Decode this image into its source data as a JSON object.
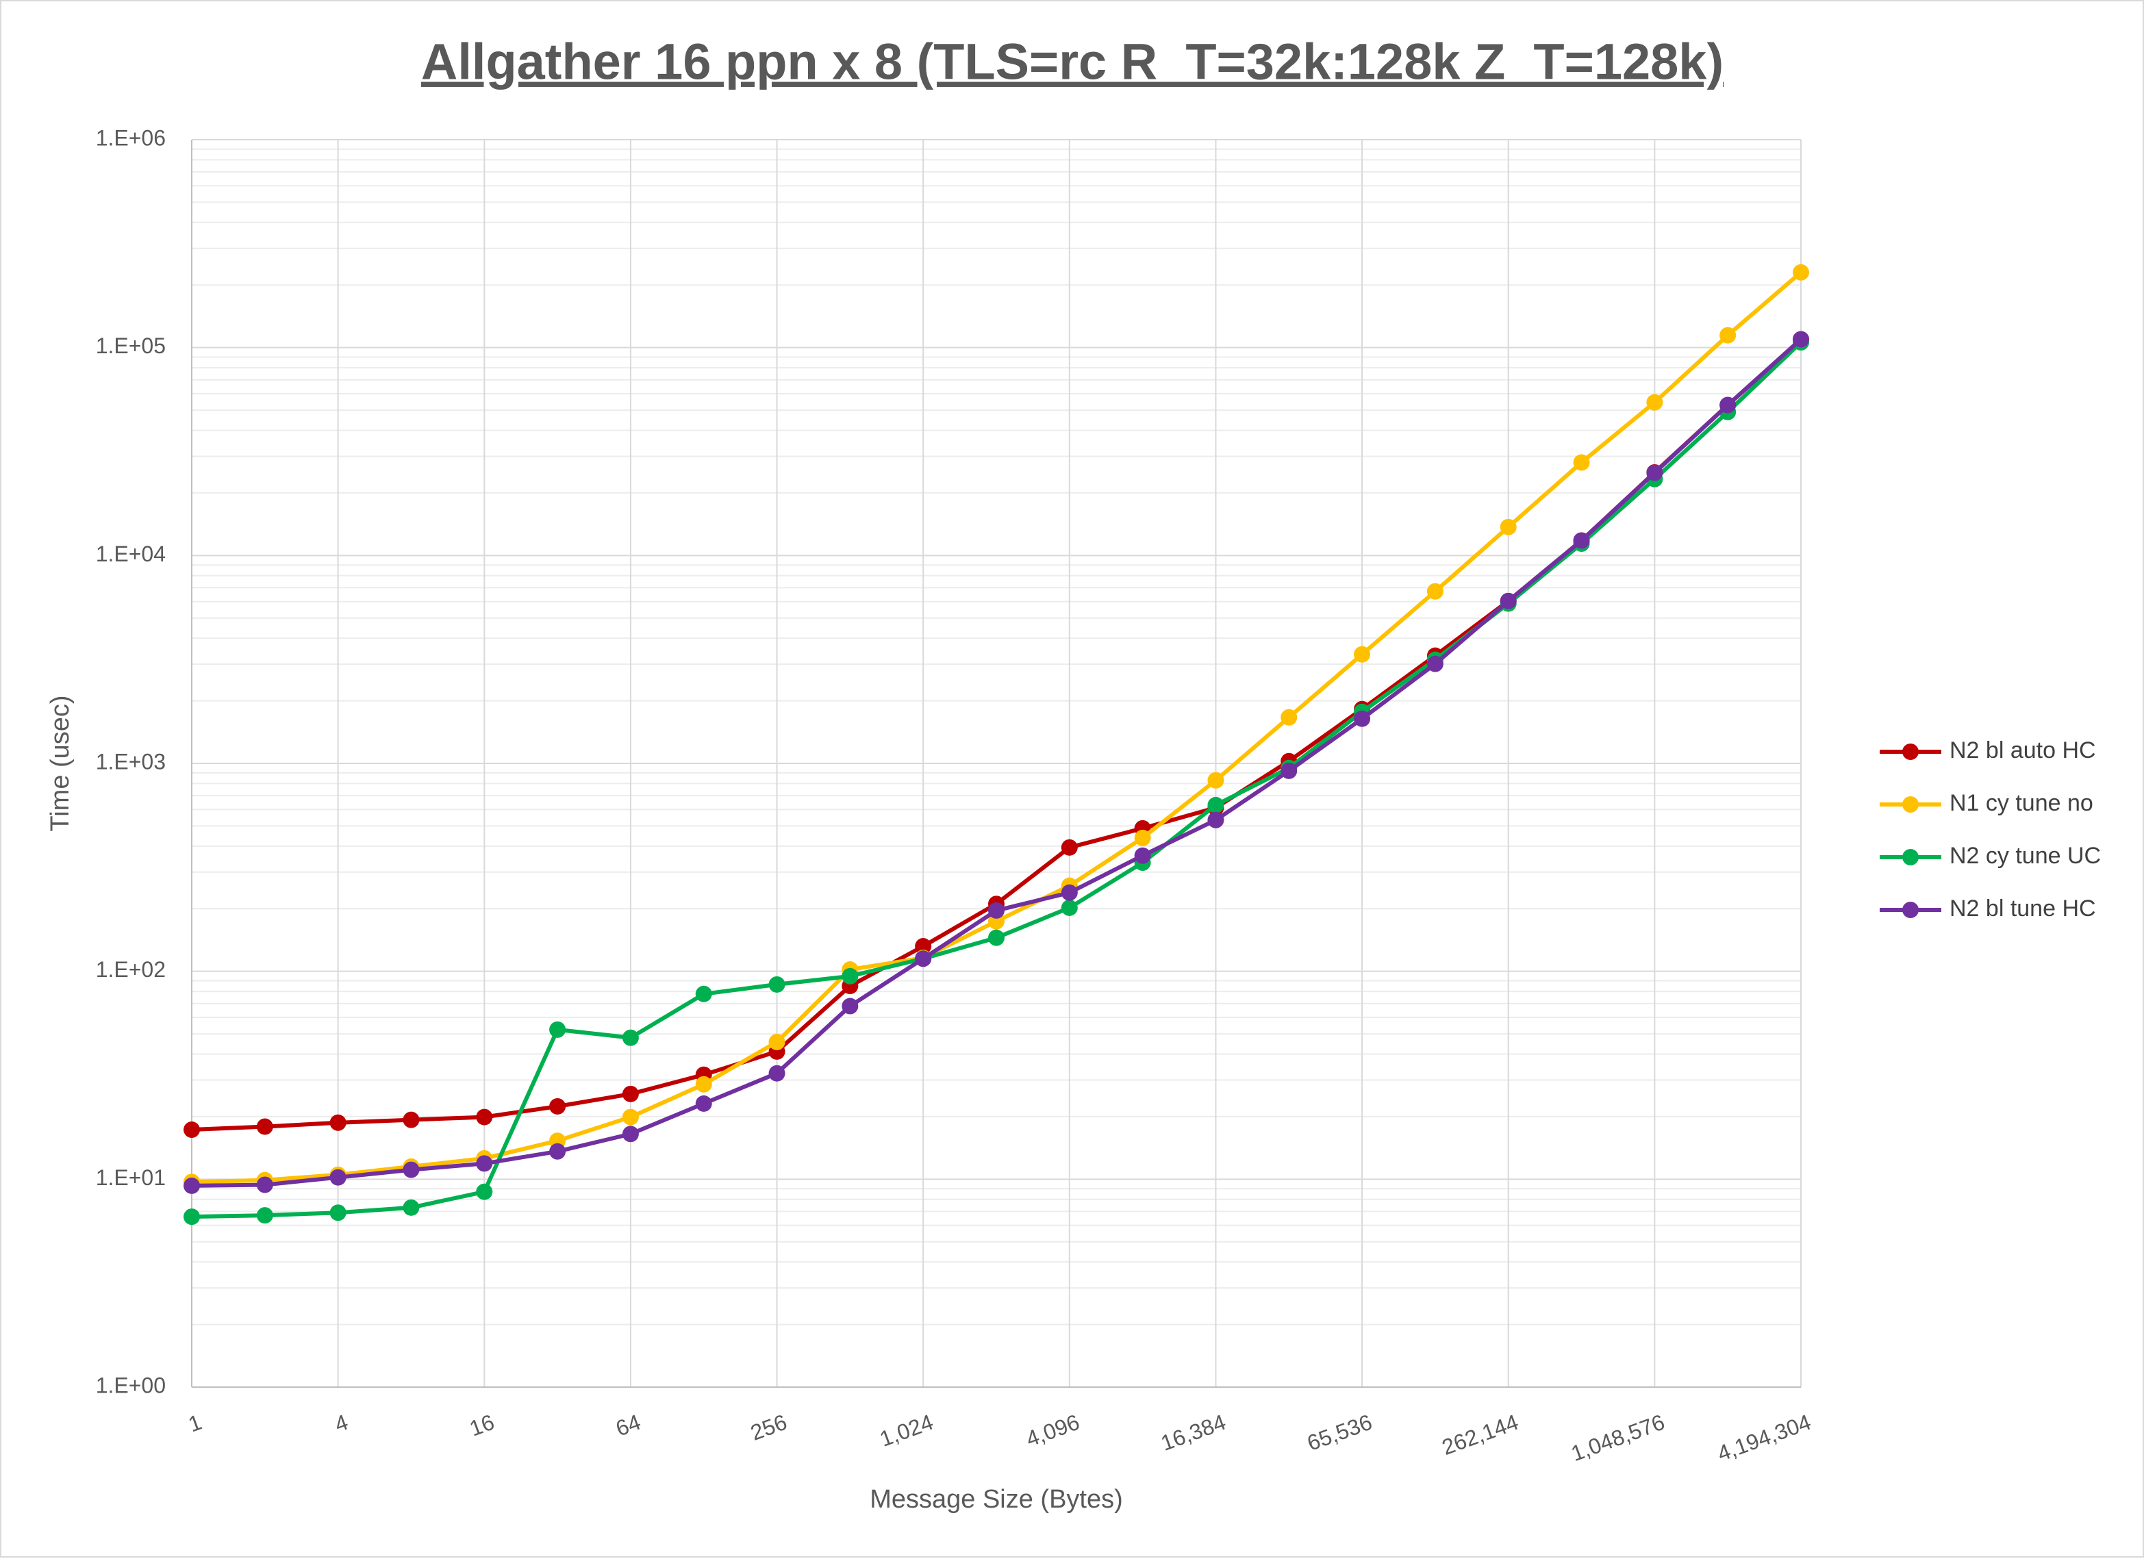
{
  "chart_data": {
    "type": "line",
    "title": "Allgather 16 ppn x 8 (TLS=rc R_T=32k:128k Z_T=128k)",
    "x_label": "Message Size (Bytes)",
    "y_label": "Time (usec)",
    "x": [
      1,
      2,
      4,
      8,
      16,
      32,
      64,
      128,
      256,
      512,
      1024,
      2048,
      4096,
      8192,
      16384,
      32768,
      65536,
      131072,
      262144,
      524288,
      1048576,
      2097152,
      4194304
    ],
    "series": [
      {
        "name": "N2 bl auto HC",
        "color": "#c00000",
        "values": [
          17.3,
          17.9,
          18.7,
          19.3,
          19.9,
          22.4,
          25.7,
          31.8,
          41.1,
          85,
          132,
          211,
          394,
          487,
          612,
          1025,
          1824,
          3297,
          6040,
          11800,
          25100,
          52900,
          109600
        ]
      },
      {
        "name": "N1 cy tune no",
        "color": "#ffc000",
        "values": [
          9.7,
          9.9,
          10.5,
          11.5,
          12.6,
          15.3,
          19.9,
          28.6,
          45.7,
          102,
          116,
          174,
          258,
          438,
          829,
          1665,
          3345,
          6720,
          13700,
          28000,
          54500,
          114600,
          230000
        ]
      },
      {
        "name": "N2 cy tune UC",
        "color": "#00b050",
        "values": [
          6.6,
          6.7,
          6.9,
          7.3,
          8.7,
          52.4,
          47.9,
          77.8,
          86.4,
          94.7,
          115,
          145,
          202,
          333,
          630,
          950,
          1770,
          3150,
          5870,
          11400,
          23300,
          49000,
          106000
        ]
      },
      {
        "name": "N2 bl tune HC",
        "color": "#7030a0",
        "values": [
          9.3,
          9.4,
          10.2,
          11.1,
          11.9,
          13.6,
          16.5,
          23.1,
          32.3,
          68,
          115,
          196,
          239,
          360,
          534,
          921,
          1640,
          3010,
          6040,
          11800,
          25000,
          52900,
          109600
        ]
      }
    ],
    "x_log": true,
    "y_log": true,
    "grid": true,
    "minor_grid": true,
    "legend": "right",
    "xlim": [
      1,
      4194304
    ],
    "xticks": [
      1,
      4,
      16,
      64,
      256,
      {
        "value": 1024,
        "label": "1,024"
      },
      {
        "value": 4096,
        "label": "4,096"
      },
      {
        "value": 16384,
        "label": "16,384"
      },
      {
        "value": 65536,
        "label": "65,536"
      },
      {
        "value": 262144,
        "label": "262,144"
      },
      {
        "value": 1048576,
        "label": "1,048,576"
      },
      {
        "value": 4194304,
        "label": "4,194,304"
      }
    ],
    "ylim": [
      1,
      1000000
    ],
    "yticks": [
      {
        "value": 1,
        "label": "1.E+00"
      },
      {
        "value": 10,
        "label": "1.E+01"
      },
      {
        "value": 100,
        "label": "1.E+02"
      },
      {
        "value": 1000,
        "label": "1.E+03"
      },
      {
        "value": 10000,
        "label": "1.E+04"
      },
      {
        "value": 100000,
        "label": "1.E+05"
      },
      {
        "value": 1000000,
        "label": "1.E+06"
      }
    ]
  }
}
